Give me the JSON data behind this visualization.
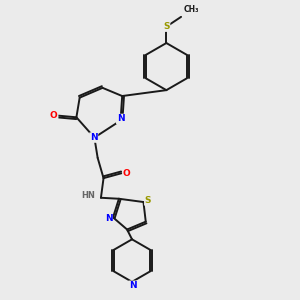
{
  "bg_color": "#ebebeb",
  "bond_color": "#1a1a1a",
  "N_color": "#0000ff",
  "O_color": "#ff0000",
  "S_color": "#999900",
  "H_color": "#666666",
  "lw": 1.4,
  "dbo": 0.055,
  "xlim": [
    0.5,
    8.5
  ],
  "ylim": [
    0.5,
    9.5
  ]
}
